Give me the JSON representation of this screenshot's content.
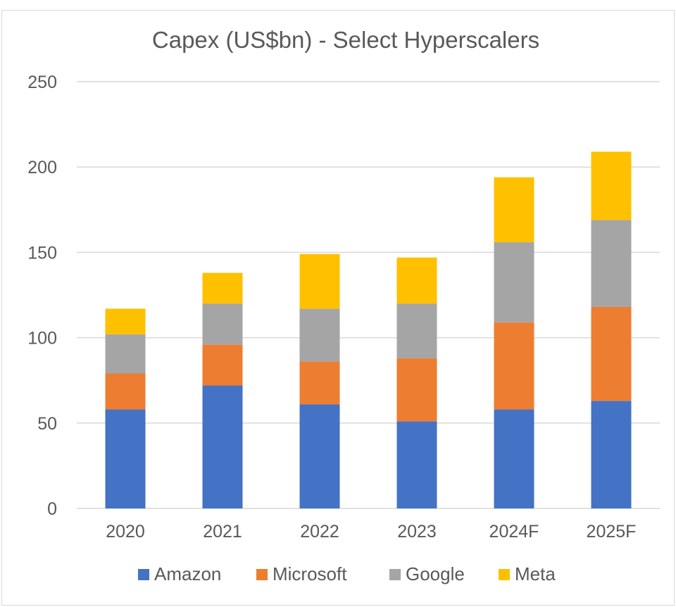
{
  "chart_data": {
    "type": "bar",
    "stacked": true,
    "title": "Capex (US$bn) - Select Hyperscalers",
    "xlabel": "",
    "ylabel": "",
    "categories": [
      "2020",
      "2021",
      "2022",
      "2023",
      "2024F",
      "2025F"
    ],
    "yticks": [
      "0",
      "50",
      "100",
      "150",
      "200",
      "250"
    ],
    "ylim": [
      0,
      250
    ],
    "grid": true,
    "legend_position": "bottom",
    "series": [
      {
        "name": "Amazon",
        "color": "#4472C4",
        "values": [
          58,
          72,
          61,
          51,
          58,
          63
        ]
      },
      {
        "name": "Microsoft",
        "color": "#ED7D31",
        "values": [
          21,
          24,
          25,
          37,
          51,
          55
        ]
      },
      {
        "name": "Google",
        "color": "#A5A5A5",
        "values": [
          23,
          24,
          31,
          32,
          47,
          51
        ]
      },
      {
        "name": "Meta",
        "color": "#FFC000",
        "values": [
          15,
          18,
          32,
          27,
          38,
          40
        ]
      }
    ]
  }
}
